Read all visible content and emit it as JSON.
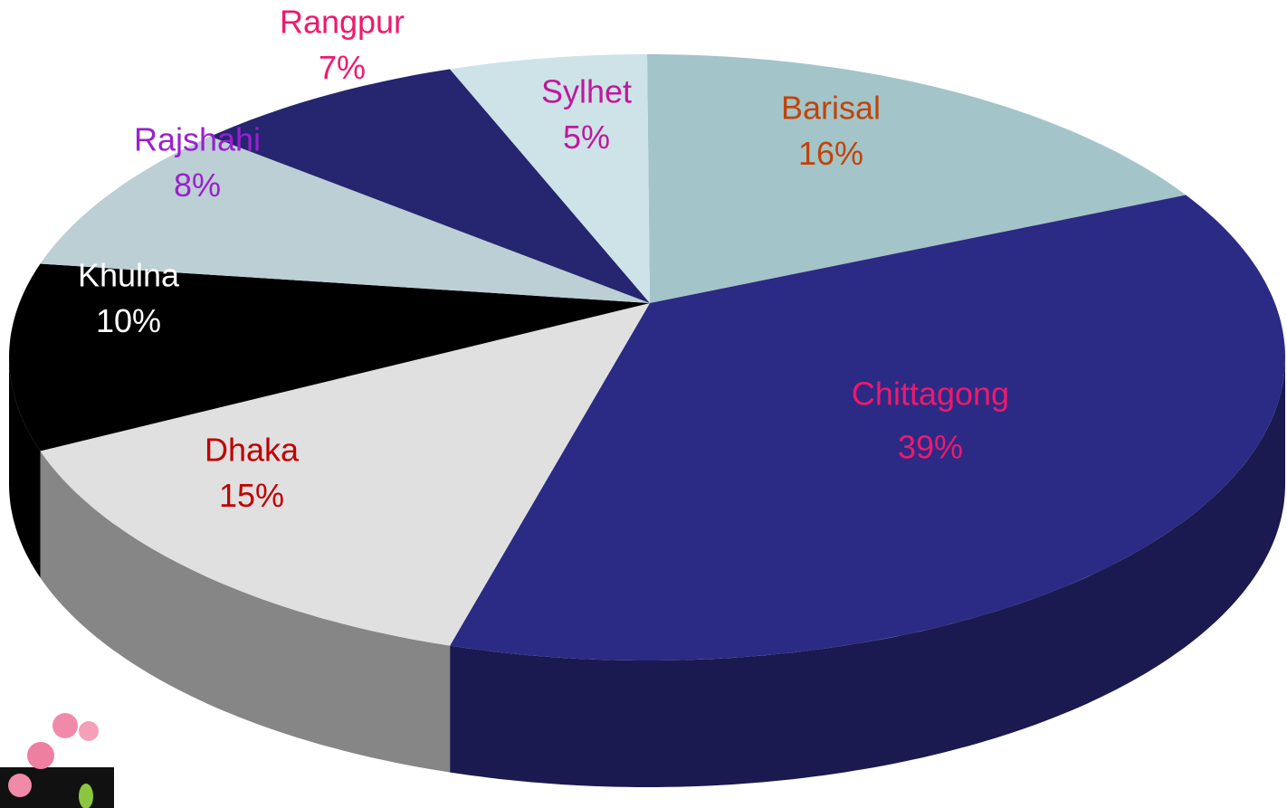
{
  "chart_data": {
    "type": "pie3d",
    "categories": [
      "Barisal",
      "Chittagong",
      "Dhaka",
      "Khulna",
      "Rajshahi",
      "Rangpur",
      "Sylhet"
    ],
    "values": [
      16,
      39,
      15,
      10,
      8,
      7,
      5
    ],
    "value_labels": [
      "16%",
      "39%",
      "15%",
      "10%",
      "8%",
      "7%",
      "5%"
    ],
    "colors": [
      "#a3c4c8",
      "#2b2b85",
      "#e0e0e0",
      "#000000",
      "#bccfd4",
      "#252570",
      "#cde3e8"
    ],
    "label_colors": [
      "#c0440a",
      "#f0186e",
      "#c00000",
      "#ffffff",
      "#9b1fd0",
      "#f0186e",
      "#c0189a"
    ]
  }
}
